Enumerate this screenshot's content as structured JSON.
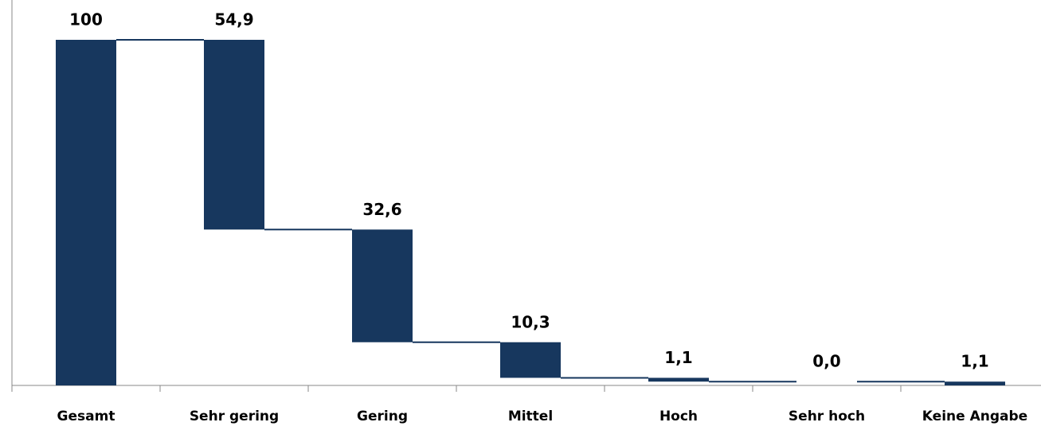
{
  "chart_data": {
    "type": "waterfall",
    "categories": [
      "Gesamt",
      "Sehr gering",
      "Gering",
      "Mittel",
      "Hoch",
      "Sehr hoch",
      "Keine Angabe"
    ],
    "values": [
      100,
      54.9,
      32.6,
      10.3,
      1.1,
      0.0,
      1.1
    ],
    "value_labels": [
      "100",
      "54,9",
      "32,6",
      "10,3",
      "1,1",
      "0,0",
      "1,1"
    ],
    "color": "#17375e",
    "ylim": [
      0,
      100
    ]
  }
}
